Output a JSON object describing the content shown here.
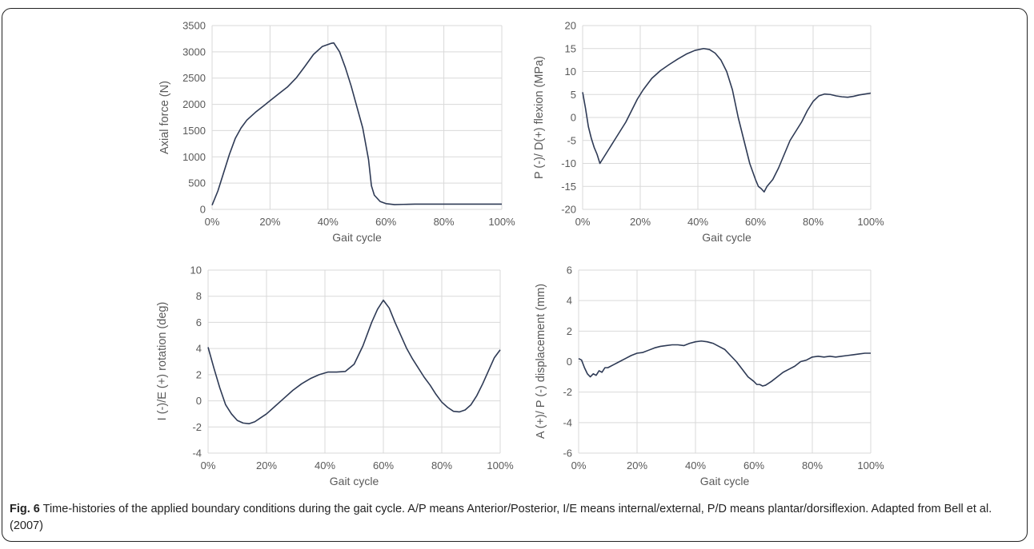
{
  "caption": {
    "label": "Fig. 6",
    "text": " Time-histories of the applied boundary conditions during the gait cycle. A/P means Anterior/Posterior, I/E means internal/external, P/D means plantar/dorsiflexion. Adapted from Bell et al. (2007)"
  },
  "chart_data": [
    {
      "type": "line",
      "xlabel": "Gait cycle",
      "ylabel": "Axial force (N)",
      "xlim": [
        0,
        100
      ],
      "ylim": [
        0,
        3500
      ],
      "xticks": [
        "0%",
        "20%",
        "40%",
        "60%",
        "80%",
        "100%"
      ],
      "yticks": [
        "0",
        "500",
        "1000",
        "1500",
        "2000",
        "2500",
        "3000",
        "3500"
      ],
      "grid": true,
      "color": "#2e3a55",
      "x": [
        0,
        2,
        4,
        6,
        8,
        10,
        12,
        15,
        18,
        20,
        23,
        26,
        29,
        32,
        35,
        38,
        41,
        42,
        44,
        46,
        48,
        50,
        52,
        54,
        55,
        56,
        58,
        60,
        63,
        66,
        70,
        75,
        80,
        90,
        100
      ],
      "y": [
        80,
        350,
        700,
        1050,
        1350,
        1550,
        1700,
        1850,
        1980,
        2070,
        2200,
        2330,
        2500,
        2720,
        2950,
        3100,
        3160,
        3170,
        3000,
        2700,
        2350,
        1950,
        1550,
        950,
        450,
        270,
        150,
        110,
        90,
        95,
        100,
        100,
        100,
        100,
        100
      ]
    },
    {
      "type": "line",
      "xlabel": "Gait cycle",
      "ylabel": "P (-)/ D(+) flexion (MPa)",
      "xlim": [
        0,
        100
      ],
      "ylim": [
        -20,
        20
      ],
      "xticks": [
        "0%",
        "20%",
        "40%",
        "60%",
        "80%",
        "100%"
      ],
      "yticks": [
        "-20",
        "-15",
        "-10",
        "-5",
        "0",
        "5",
        "10",
        "15",
        "20"
      ],
      "grid": true,
      "color": "#2e3a55",
      "x": [
        0,
        1,
        2,
        3,
        4,
        5,
        6,
        7,
        9,
        11,
        13,
        15,
        17,
        19,
        21,
        24,
        27,
        30,
        33,
        36,
        39,
        42,
        44,
        46,
        48,
        50,
        52,
        54,
        56,
        58,
        60,
        61,
        62,
        63,
        64,
        66,
        68,
        70,
        72,
        74,
        76,
        78,
        80,
        82,
        84,
        86,
        88,
        90,
        92,
        94,
        96,
        98,
        100
      ],
      "y": [
        5.5,
        2,
        -2,
        -4.5,
        -6.5,
        -8,
        -10,
        -9,
        -7,
        -5,
        -3,
        -1,
        1.5,
        4,
        6,
        8.5,
        10.2,
        11.5,
        12.7,
        13.8,
        14.6,
        15,
        14.8,
        14,
        12.5,
        10,
        6,
        0,
        -5,
        -10,
        -13.5,
        -15,
        -15.5,
        -16.2,
        -15,
        -13.5,
        -11,
        -8,
        -5,
        -3,
        -1,
        1.5,
        3.5,
        4.7,
        5.1,
        5,
        4.7,
        4.5,
        4.4,
        4.6,
        4.9,
        5.1,
        5.3
      ]
    },
    {
      "type": "line",
      "xlabel": "Gait cycle",
      "ylabel": "I (-)/E (+) rotation  (deg)",
      "xlim": [
        0,
        100
      ],
      "ylim": [
        -4,
        10
      ],
      "xticks": [
        "0%",
        "20%",
        "40%",
        "60%",
        "80%",
        "100%"
      ],
      "yticks": [
        "-4",
        "-2",
        "0",
        "2",
        "4",
        "6",
        "8",
        "10"
      ],
      "grid": true,
      "color": "#2e3a55",
      "x": [
        0,
        2,
        4,
        6,
        8,
        10,
        12,
        14,
        16,
        18,
        20,
        23,
        26,
        29,
        32,
        35,
        38,
        41,
        44,
        47,
        50,
        53,
        56,
        58,
        60,
        62,
        64,
        66,
        68,
        70,
        72,
        74,
        76,
        78,
        80,
        82,
        84,
        86,
        88,
        90,
        92,
        94,
        96,
        98,
        100
      ],
      "y": [
        4.1,
        2.5,
        1,
        -0.3,
        -1,
        -1.5,
        -1.7,
        -1.75,
        -1.6,
        -1.3,
        -1,
        -0.4,
        0.2,
        0.8,
        1.3,
        1.7,
        2,
        2.2,
        2.2,
        2.25,
        2.8,
        4.2,
        6,
        7,
        7.7,
        7.1,
        6,
        5,
        4,
        3.2,
        2.5,
        1.8,
        1.2,
        0.5,
        -0.1,
        -0.5,
        -0.8,
        -0.85,
        -0.7,
        -0.3,
        0.4,
        1.3,
        2.3,
        3.3,
        3.9
      ]
    },
    {
      "type": "line",
      "xlabel": "Gait cycle",
      "ylabel": "A (+)/ P (-) displacement  (mm)",
      "xlim": [
        0,
        100
      ],
      "ylim": [
        -6,
        6
      ],
      "xticks": [
        "0%",
        "20%",
        "40%",
        "60%",
        "80%",
        "100%"
      ],
      "yticks": [
        "-6",
        "-4",
        "-2",
        "0",
        "2",
        "4",
        "6"
      ],
      "grid": true,
      "color": "#2e3a55",
      "x": [
        0,
        1,
        2,
        3,
        4,
        5,
        6,
        7,
        8,
        9,
        10,
        12,
        14,
        16,
        18,
        20,
        22,
        24,
        26,
        28,
        30,
        32,
        34,
        36,
        38,
        40,
        42,
        44,
        46,
        48,
        50,
        52,
        54,
        56,
        58,
        60,
        61,
        62,
        63,
        64,
        66,
        68,
        70,
        72,
        74,
        76,
        78,
        80,
        82,
        84,
        86,
        88,
        90,
        92,
        94,
        96,
        98,
        100
      ],
      "y": [
        0.2,
        0.1,
        -0.4,
        -0.8,
        -1,
        -0.8,
        -0.9,
        -0.6,
        -0.7,
        -0.4,
        -0.4,
        -0.2,
        0,
        0.2,
        0.4,
        0.55,
        0.6,
        0.75,
        0.9,
        1,
        1.05,
        1.1,
        1.1,
        1.05,
        1.2,
        1.3,
        1.35,
        1.3,
        1.2,
        1,
        0.8,
        0.4,
        0,
        -0.5,
        -1,
        -1.3,
        -1.5,
        -1.5,
        -1.6,
        -1.55,
        -1.3,
        -1,
        -0.7,
        -0.5,
        -0.3,
        0,
        0.1,
        0.3,
        0.35,
        0.3,
        0.35,
        0.3,
        0.35,
        0.4,
        0.45,
        0.5,
        0.55,
        0.55
      ]
    }
  ]
}
